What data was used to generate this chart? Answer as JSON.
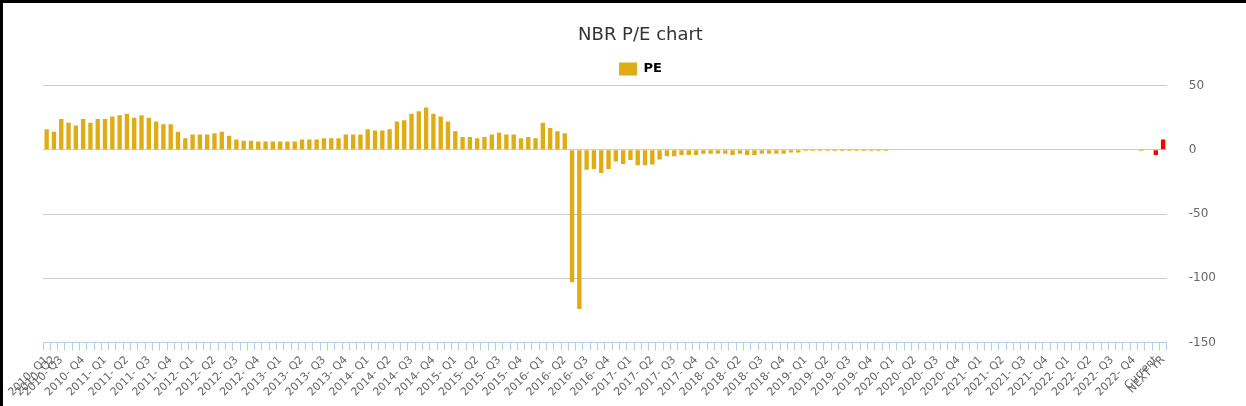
{
  "chart_data": {
    "type": "bar",
    "title": "NBR P/E chart",
    "categories": [
      "2010- Q1",
      "2010- Q2",
      "2010- Q3",
      null,
      null,
      "2010- Q4",
      null,
      null,
      "2011- Q1",
      null,
      null,
      "2011- Q2",
      null,
      null,
      "2011- Q3",
      null,
      null,
      "2011- Q4",
      null,
      null,
      "2012- Q1",
      null,
      null,
      "2012- Q2",
      null,
      null,
      "2012- Q3",
      null,
      null,
      "2012- Q4",
      null,
      null,
      "2013- Q1",
      null,
      null,
      "2013- Q2",
      null,
      null,
      "2013- Q3",
      null,
      null,
      "2013- Q4",
      null,
      null,
      "2014- Q1",
      null,
      null,
      "2014- Q2",
      null,
      null,
      "2014- Q3",
      null,
      null,
      "2014- Q4",
      null,
      null,
      "2015- Q1",
      null,
      null,
      "2015- Q2",
      null,
      null,
      "2015- Q3",
      null,
      null,
      "2015- Q4",
      null,
      null,
      "2016- Q1",
      null,
      null,
      "2016- Q2",
      null,
      null,
      "2016- Q3",
      null,
      null,
      "2016- Q4",
      null,
      null,
      "2017- Q1",
      null,
      null,
      "2017- Q2",
      null,
      null,
      "2017- Q3",
      null,
      null,
      "2017- Q4",
      null,
      null,
      "2018- Q1",
      null,
      null,
      "2018- Q2",
      null,
      null,
      "2018- Q3",
      null,
      null,
      "2018- Q4",
      null,
      null,
      "2019- Q1",
      null,
      null,
      "2019- Q2",
      null,
      null,
      "2019- Q3",
      null,
      null,
      "2019- Q4",
      null,
      null,
      "2020- Q1",
      null,
      null,
      "2020- Q2",
      null,
      null,
      "2020- Q3",
      null,
      null,
      "2020- Q4",
      null,
      null,
      "2021- Q1",
      null,
      null,
      "2021- Q2",
      null,
      null,
      "2021- Q3",
      null,
      null,
      "2021- Q4",
      null,
      null,
      "2022- Q1",
      null,
      null,
      "2022- Q2",
      null,
      null,
      "2022- Q3",
      null,
      null,
      "2022- Q4",
      null,
      null,
      "Current",
      "NEXT YR"
    ],
    "series": [
      {
        "name": "PE",
        "color": "#e0ac16",
        "values": [
          16,
          14,
          24,
          21,
          19,
          24,
          21,
          24,
          24,
          26,
          27,
          28,
          25,
          27,
          25,
          22,
          20,
          20,
          14,
          9,
          12,
          12,
          12,
          13,
          14,
          11,
          8,
          7,
          7,
          6.5,
          6.5,
          6.5,
          6.5,
          6.5,
          6.5,
          8,
          8,
          8,
          9,
          9,
          9,
          12,
          12,
          12,
          16,
          15,
          15,
          16,
          22,
          23,
          28,
          30,
          33,
          28,
          26,
          22,
          14.5,
          10,
          10,
          9,
          10,
          12,
          13.5,
          12,
          12,
          9,
          10,
          9,
          21,
          17,
          14.5,
          13,
          -103,
          -124,
          -15.5,
          -15,
          -18,
          -15,
          -9,
          -11,
          -8,
          -12,
          -12,
          -11.5,
          -7.5,
          -5,
          -5,
          -4,
          -4,
          -4,
          -3,
          -3,
          -3,
          -3,
          -4,
          -3,
          -4,
          -4,
          -3,
          -3,
          -3,
          -3,
          -2,
          -2,
          -1,
          -1,
          -1,
          -1,
          -1,
          -1,
          -1,
          -1,
          -1,
          -1,
          -1,
          -1,
          0,
          0,
          0,
          0,
          0,
          0,
          0,
          0,
          0,
          0,
          0,
          0,
          0,
          0,
          0,
          0,
          0,
          0,
          0,
          0,
          0,
          0,
          0,
          0,
          0,
          0,
          0,
          0,
          0,
          0,
          0,
          0,
          0,
          0,
          -1,
          0,
          -4,
          8
        ],
        "colors": [
          "#e0ac16",
          "#e0ac16",
          "#e0ac16",
          "#e0ac16",
          "#e0ac16",
          "#e0ac16",
          "#e0ac16",
          "#e0ac16",
          "#e0ac16",
          "#e0ac16",
          "#e0ac16",
          "#e0ac16",
          "#e0ac16",
          "#e0ac16",
          "#e0ac16",
          "#e0ac16",
          "#e0ac16",
          "#e0ac16",
          "#e0ac16",
          "#e0ac16",
          "#e0ac16",
          "#e0ac16",
          "#e0ac16",
          "#e0ac16",
          "#e0ac16",
          "#e0ac16",
          "#e0ac16",
          "#e0ac16",
          "#e0ac16",
          "#e0ac16",
          "#e0ac16",
          "#e0ac16",
          "#e0ac16",
          "#e0ac16",
          "#e0ac16",
          "#e0ac16",
          "#e0ac16",
          "#e0ac16",
          "#e0ac16",
          "#e0ac16",
          "#e0ac16",
          "#e0ac16",
          "#e0ac16",
          "#e0ac16",
          "#e0ac16",
          "#e0ac16",
          "#e0ac16",
          "#e0ac16",
          "#e0ac16",
          "#e0ac16",
          "#e0ac16",
          "#e0ac16",
          "#e0ac16",
          "#e0ac16",
          "#e0ac16",
          "#e0ac16",
          "#e0ac16",
          "#e0ac16",
          "#e0ac16",
          "#e0ac16",
          "#e0ac16",
          "#e0ac16",
          "#e0ac16",
          "#e0ac16",
          "#e0ac16",
          "#e0ac16",
          "#e0ac16",
          "#e0ac16",
          "#e0ac16",
          "#e0ac16",
          "#e0ac16",
          "#e0ac16",
          "#e0ac16",
          "#e0ac16",
          "#e0ac16",
          "#e0ac16",
          "#e0ac16",
          "#e0ac16",
          "#e0ac16",
          "#e0ac16",
          "#e0ac16",
          "#e0ac16",
          "#e0ac16",
          "#e0ac16",
          "#e0ac16",
          "#e0ac16",
          "#e0ac16",
          "#e0ac16",
          "#e0ac16",
          "#e0ac16",
          "#e0ac16",
          "#e0ac16",
          "#e0ac16",
          "#e0ac16",
          "#e0ac16",
          "#e0ac16",
          "#e0ac16",
          "#e0ac16",
          "#e0ac16",
          "#e0ac16",
          "#e0ac16",
          "#e0ac16",
          "#e0ac16",
          "#e0ac16",
          "#e0ac16",
          "#e0ac16",
          "#e0ac16",
          "#e0ac16",
          "#e0ac16",
          "#e0ac16",
          "#e0ac16",
          "#e0ac16",
          "#e0ac16",
          "#e0ac16",
          "#e0ac16",
          "#e0ac16",
          "#e0ac16",
          "#e0ac16",
          "#e0ac16",
          "#e0ac16",
          "#e0ac16",
          "#e0ac16",
          "#e0ac16",
          "#e0ac16",
          "#e0ac16",
          "#e0ac16",
          "#e0ac16",
          "#e0ac16",
          "#e0ac16",
          "#e0ac16",
          "#e0ac16",
          "#e0ac16",
          "#e0ac16",
          "#e0ac16",
          "#e0ac16",
          "#e0ac16",
          "#e0ac16",
          "#e0ac16",
          "#e0ac16",
          "#e0ac16",
          "#e0ac16",
          "#e0ac16",
          "#e0ac16",
          "#e0ac16",
          "#e0ac16",
          "#e0ac16",
          "#e0ac16",
          "#e0ac16",
          "#e0ac16",
          "#e0ac16",
          "#e0ac16",
          "#e0ac16",
          "#ff0000",
          "#ff0000"
        ]
      }
    ],
    "ylim": [
      -150,
      50
    ],
    "yticks": [
      -150,
      -100,
      -50,
      0,
      50
    ],
    "grid": "y",
    "legend": "top"
  }
}
